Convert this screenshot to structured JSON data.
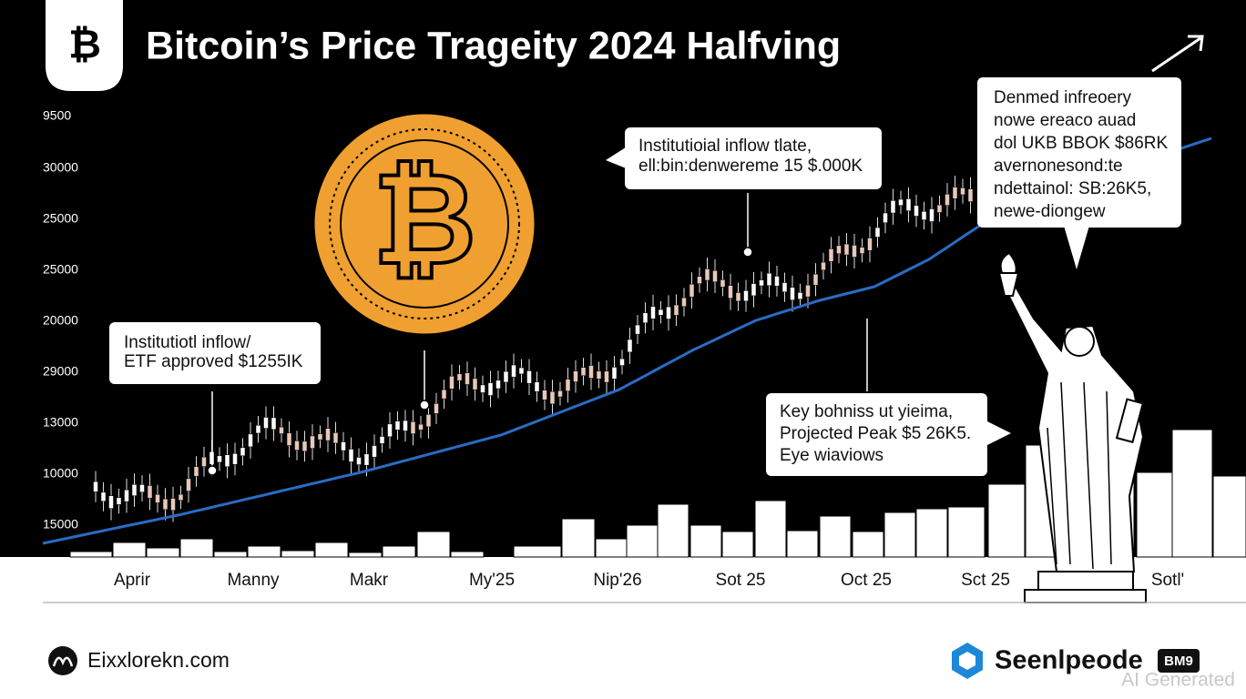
{
  "header": {
    "icon": "₿",
    "title": "Bitcoin’s Price Trageity 2024 Halfving"
  },
  "coin": {
    "symbol": "₿"
  },
  "axis": {
    "y_labels": [
      "9500",
      "30000",
      "25000",
      "25000",
      "20000",
      "29000",
      "13000",
      "10000",
      "15000"
    ],
    "x_labels": [
      "Aprir",
      "Manny",
      "Makr",
      "My'25",
      "Nip'26",
      "Sot 25",
      "Oct 25",
      "Sct 25",
      "Sotl'"
    ]
  },
  "callouts": [
    {
      "lines": [
        "Institutiotl inflow/",
        "ETF approved $1255IK"
      ]
    },
    {
      "lines": [
        "Institutioial inflow tlate,",
        "ell:bin:denwereme 15 $.000K"
      ]
    },
    {
      "lines": [
        "Denmed infreoery",
        "nowe ereaco auad",
        "dol UKB BBOK $86RK",
        "avernonesond:te",
        "ndettainol: SB:26K5,",
        "newe-diongew"
      ]
    },
    {
      "lines": [
        "Key bohniss ut yieima,",
        "Projected Peak $5 26K5.",
        "Eye wiaviows"
      ]
    }
  ],
  "footer": {
    "site": "Eixxlorekn.com",
    "brand": "Seenlpeode",
    "badge": "BM9",
    "watermark": "AI Generated"
  }
}
